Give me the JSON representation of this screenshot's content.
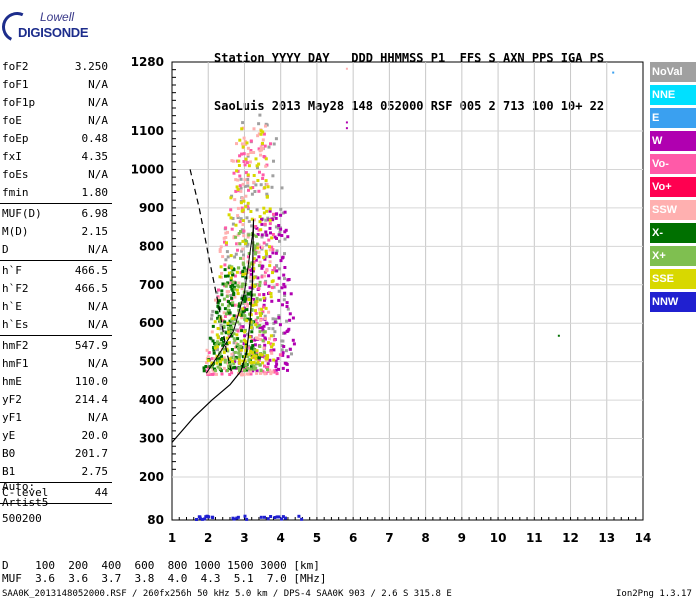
{
  "logo": {
    "top": "Lowell",
    "bottom": "DIGISONDE"
  },
  "header": {
    "row1": "Station YYYY DAY   DDD HHMMSS P1  FFS S AXN PPS IGA PS",
    "row2": "SaoLuis 2013 May28 148 052000 RSF 005 2 713 100 10+ 22"
  },
  "params": [
    {
      "label": "foF2",
      "value": "3.250"
    },
    {
      "label": "foF1",
      "value": "N/A"
    },
    {
      "label": "foF1p",
      "value": "N/A"
    },
    {
      "label": "foE",
      "value": "N/A"
    },
    {
      "label": "foEp",
      "value": "0.48"
    },
    {
      "label": "fxI",
      "value": "4.35"
    },
    {
      "label": "foEs",
      "value": "N/A"
    },
    {
      "label": "fmin",
      "value": "1.80"
    },
    {
      "sep": true
    },
    {
      "label": "MUF(D)",
      "value": "6.98"
    },
    {
      "label": "M(D)",
      "value": "2.15"
    },
    {
      "label": "D",
      "value": "N/A"
    },
    {
      "sep": true
    },
    {
      "label": "h`F",
      "value": "466.5"
    },
    {
      "label": "h`F2",
      "value": "466.5"
    },
    {
      "label": "h`E",
      "value": "N/A"
    },
    {
      "label": "h`Es",
      "value": "N/A"
    },
    {
      "sep": true
    },
    {
      "label": "hmF2",
      "value": "547.9"
    },
    {
      "label": "hmF1",
      "value": "N/A"
    },
    {
      "label": "hmE",
      "value": "110.0"
    },
    {
      "label": "yF2",
      "value": "214.4"
    },
    {
      "label": "yF1",
      "value": "N/A"
    },
    {
      "label": "yE",
      "value": "20.0"
    },
    {
      "label": "B0",
      "value": "201.7"
    },
    {
      "label": "B1",
      "value": "2.75"
    },
    {
      "sep": true
    },
    {
      "label": "C-level",
      "value": "44"
    },
    {
      "sep": true
    }
  ],
  "auto": {
    "line1": "Auto:",
    "line2": "Artist5",
    "line3": "500200"
  },
  "legend": [
    {
      "label": "NoVal",
      "color": "#a0a0a0"
    },
    {
      "label": "NNE",
      "color": "#00e0ff"
    },
    {
      "label": "E",
      "color": "#3aa0f0"
    },
    {
      "label": "W",
      "color": "#b000b0"
    },
    {
      "label": "Vo-",
      "color": "#ff5aa8"
    },
    {
      "label": "Vo+",
      "color": "#ff0050"
    },
    {
      "label": "SSW",
      "color": "#ffb0b0"
    },
    {
      "label": "X-",
      "color": "#007000"
    },
    {
      "label": "X+",
      "color": "#7fbf50"
    },
    {
      "label": "SSE",
      "color": "#d8d800"
    },
    {
      "label": "NNW",
      "color": "#2020d0"
    }
  ],
  "footer": {
    "dist_row": "D    100  200  400  600  800 1000 1500 3000 [km]",
    "muf_row": "MUF  3.6  3.6  3.7  3.8  4.0  4.3  5.1  7.0 [MHz]",
    "file_row": "SAA0K_2013148052000.RSF / 260fx256h 50 kHz 5.0 km / DPS-4 SAA0K 903 / 2.6 S 315.8 E",
    "version": "Ion2Png 1.3.17"
  },
  "chart_data": {
    "type": "scatter",
    "title": "",
    "xlabel": "",
    "ylabel": "",
    "x_ticks": [
      1,
      2,
      3,
      4,
      5,
      6,
      7,
      8,
      9,
      10,
      11,
      12,
      13,
      14
    ],
    "y_tick_labels": [
      80,
      200,
      300,
      400,
      500,
      600,
      700,
      800,
      900,
      1000,
      1100,
      1280
    ],
    "xlim": [
      1,
      14
    ],
    "ylim": [
      80,
      1280
    ],
    "grid": true,
    "series": [
      {
        "name": "NoVal",
        "cluster": {
          "fmin": 1.8,
          "fmax": 4.2,
          "hmin": 520,
          "hmax": 1150
        }
      },
      {
        "name": "W",
        "cluster": {
          "fmin": 2.6,
          "fmax": 4.4,
          "hmin": 480,
          "hmax": 900
        }
      },
      {
        "name": "Vo-",
        "cluster": {
          "fmin": 1.8,
          "fmax": 4.0,
          "hmin": 470,
          "hmax": 1100
        }
      },
      {
        "name": "SSW",
        "cluster": {
          "fmin": 1.8,
          "fmax": 3.8,
          "hmin": 470,
          "hmax": 1150
        }
      },
      {
        "name": "X-",
        "cluster": {
          "fmin": 1.8,
          "fmax": 3.4,
          "hmin": 480,
          "hmax": 750
        }
      },
      {
        "name": "X+",
        "cluster": {
          "fmin": 2.0,
          "fmax": 3.6,
          "hmin": 480,
          "hmax": 850
        }
      },
      {
        "name": "SSE",
        "cluster": {
          "fmin": 1.9,
          "fmax": 3.8,
          "hmin": 500,
          "hmax": 1120
        }
      },
      {
        "name": "NNW",
        "cluster": {
          "fmin": 1.6,
          "fmax": 4.6,
          "hmin": 85,
          "hmax": 95
        }
      }
    ],
    "isolated_points": [
      {
        "f": 5.8,
        "h": 1265,
        "series": "SSW"
      },
      {
        "f": 5.8,
        "h": 1125,
        "series": "W"
      },
      {
        "f": 5.8,
        "h": 1110,
        "series": "W"
      },
      {
        "f": 11.65,
        "h": 570,
        "series": "X-"
      },
      {
        "f": 13.15,
        "h": 1255,
        "series": "E"
      }
    ],
    "profile_curve": {
      "f": [
        1.0,
        1.6,
        2.1,
        2.6,
        2.9,
        3.05,
        3.15,
        3.22,
        3.25
      ],
      "h": [
        290,
        355,
        400,
        440,
        475,
        520,
        600,
        700,
        870
      ]
    },
    "dashed_curve": {
      "f": [
        1.5,
        1.75,
        2.0,
        2.3,
        2.5,
        2.65
      ],
      "h": [
        1000,
        900,
        780,
        640,
        530,
        470
      ]
    },
    "trace_curve": {
      "f": [
        1.95,
        2.3,
        2.7,
        3.0,
        3.25
      ],
      "h": [
        470,
        520,
        580,
        680,
        850
      ]
    }
  }
}
